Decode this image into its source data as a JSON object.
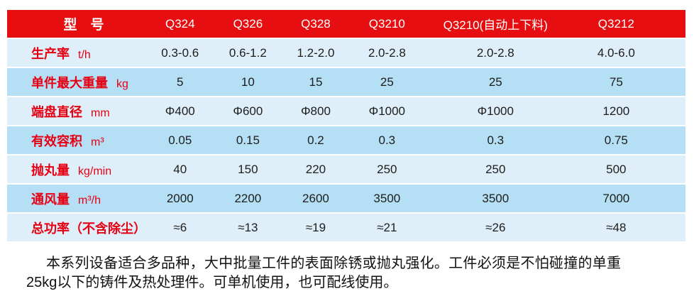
{
  "table": {
    "header": {
      "label": "型　号",
      "models": [
        "Q324",
        "Q326",
        "Q328",
        "Q3210",
        "Q3210(自动上下料)",
        "Q3212"
      ]
    },
    "rows": [
      {
        "label": "生产率",
        "unit": "t/h",
        "values": [
          "0.3-0.6",
          "0.6-1.2",
          "1.2-2.0",
          "2.0-2.8",
          "2.0-2.8",
          "4.0-6.0"
        ]
      },
      {
        "label": "单件最大重量",
        "unit": "kg",
        "values": [
          "5",
          "10",
          "15",
          "25",
          "25",
          "75"
        ]
      },
      {
        "label": "端盘直径",
        "unit": "mm",
        "values": [
          "Φ400",
          "Φ600",
          "Φ800",
          "Φ1000",
          "Φ1000",
          "1200"
        ]
      },
      {
        "label": "有效容积",
        "unit": "m³",
        "values": [
          "0.05",
          "0.15",
          "0.2",
          "0.3",
          "0.3",
          "0.75"
        ]
      },
      {
        "label": "抛丸量",
        "unit": "kg/min",
        "values": [
          "40",
          "150",
          "220",
          "250",
          "250",
          "500"
        ]
      },
      {
        "label": "通风量",
        "unit": "m³/h",
        "values": [
          "2000",
          "2200",
          "2600",
          "3500",
          "3500",
          "7000"
        ]
      },
      {
        "label": "总功率（不含除尘）",
        "unit": "",
        "values": [
          "≈6",
          "≈13",
          "≈19",
          "≈21",
          "≈26",
          "≈48"
        ]
      }
    ]
  },
  "footer": {
    "paragraph": "本系列设备适合多品种，大中批量工件的表面除锈或抛丸强化。工件必须是不怕碰撞的单重25kg以下的铸件及热处理件。可单机使用，也可配线使用。"
  },
  "colors": {
    "header_bg": "#E60E10",
    "label_text": "#E60012",
    "row_light": "#DFEFFA",
    "row_dark": "#B5DFF5",
    "value_text": "#1D1D1B"
  }
}
